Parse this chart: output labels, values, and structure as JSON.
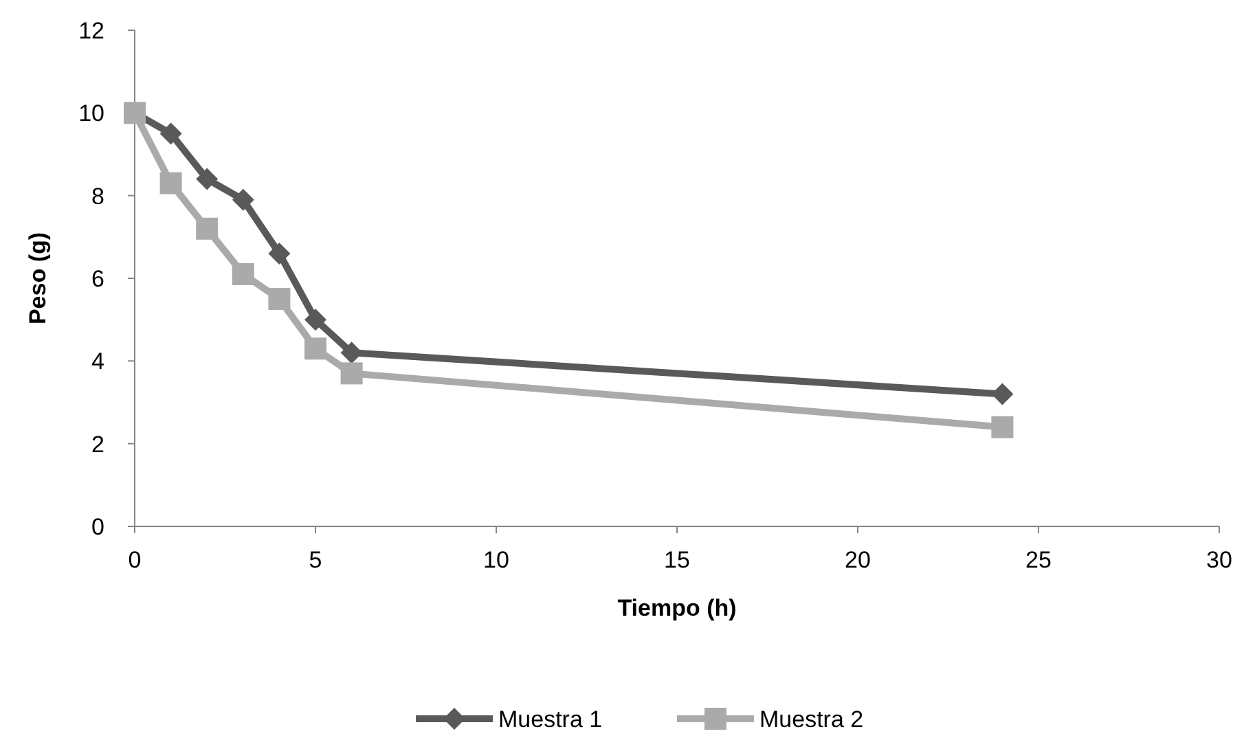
{
  "chart_data": {
    "type": "line",
    "xlabel": "Tiempo (h)",
    "ylabel": "Peso (g)",
    "x": [
      0,
      1,
      2,
      3,
      4,
      5,
      6,
      24
    ],
    "series": [
      {
        "name": "Muestra 1",
        "color": "#595959",
        "values": [
          10,
          9.5,
          8.4,
          7.9,
          6.6,
          5.0,
          4.2,
          3.2
        ],
        "marker": "diamond"
      },
      {
        "name": "Muestra 2",
        "color": "#aaaaaa",
        "values": [
          10,
          8.3,
          7.2,
          6.1,
          5.5,
          4.3,
          3.7,
          2.4
        ],
        "marker": "square"
      }
    ],
    "xlim": [
      0,
      30
    ],
    "xticks": [
      0,
      5,
      10,
      15,
      20,
      25,
      30
    ],
    "ylim": [
      0,
      12
    ],
    "yticks": [
      0,
      2,
      4,
      6,
      8,
      10,
      12
    ],
    "grid": false,
    "legend": "bottom",
    "line_style": "solid"
  }
}
